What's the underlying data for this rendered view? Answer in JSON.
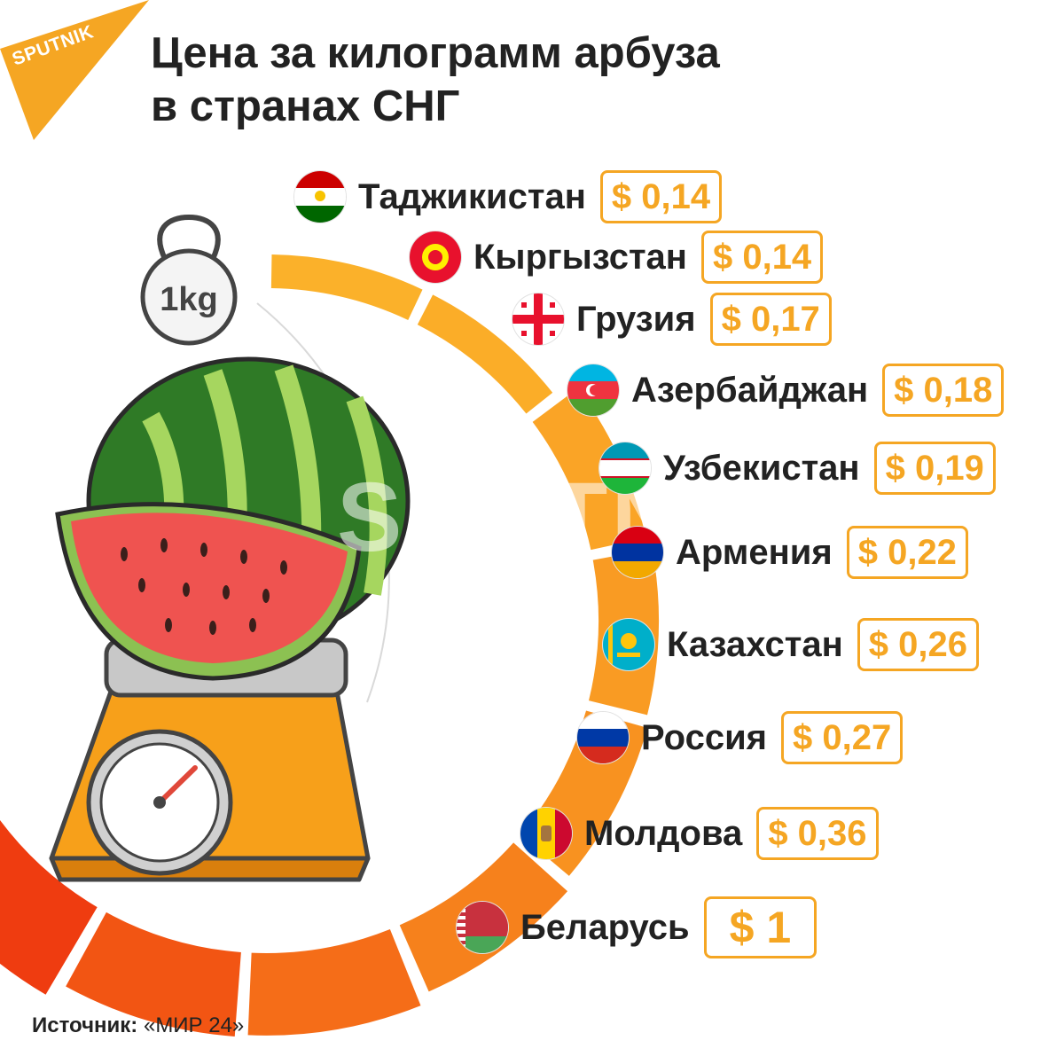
{
  "brand": {
    "logo_text": "SPUTNIK",
    "accent": "#f5a623"
  },
  "title_lines": [
    "Цена за килограмм арбуза",
    "в странах СНГ"
  ],
  "weight_label": "1kg",
  "watermark": "SPUTNIK",
  "source": {
    "label": "Источник:",
    "value": "«МИР 24»"
  },
  "chart_data": {
    "type": "bar",
    "title": "Цена за килограмм арбуза в странах СНГ",
    "unit": "$",
    "categories": [
      "Таджикистан",
      "Кыргызстан",
      "Грузия",
      "Азербайджан",
      "Узбекистан",
      "Армения",
      "Казахстан",
      "Россия",
      "Молдова",
      "Беларусь"
    ],
    "values": [
      0.14,
      0.14,
      0.17,
      0.18,
      0.19,
      0.22,
      0.26,
      0.27,
      0.36,
      1
    ],
    "value_labels": [
      "$ 0,14",
      "$ 0,14",
      "$ 0,17",
      "$ 0,18",
      "$ 0,19",
      "$ 0,22",
      "$ 0,26",
      "$ 0,27",
      "$ 0,36",
      "$ 1"
    ],
    "colors": [
      "#fbb12a",
      "#fbad28",
      "#faa426",
      "#f99b23",
      "#f89220",
      "#f6811c",
      "#f56d18",
      "#f25513",
      "#ef3c10",
      "#ea2f0c"
    ],
    "flags": [
      "tajikistan-flag",
      "kyrgyzstan-flag",
      "georgia-flag",
      "azerbaijan-flag",
      "uzbekistan-flag",
      "armenia-flag",
      "kazakhstan-flag",
      "russia-flag",
      "moldova-flag",
      "belarus-flag"
    ]
  }
}
